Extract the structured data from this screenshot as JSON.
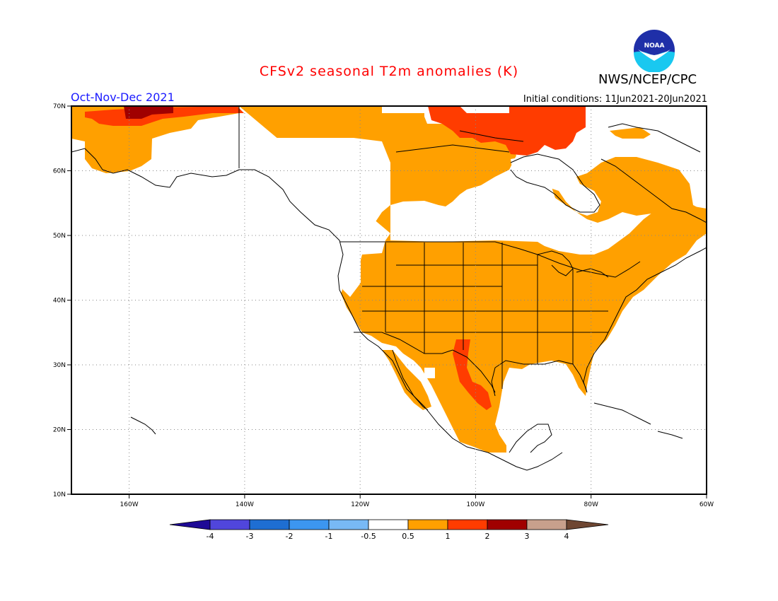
{
  "title": "CFSv2 seasonal T2m anomalies (K)",
  "agency": "NWS/NCEP/CPC",
  "logo_text": "NOAA",
  "period": "Oct-Nov-Dec 2021",
  "initial_conditions": "Initial conditions: 11Jun2021-20Jun2021",
  "map": {
    "lon_range": [
      -170,
      -60
    ],
    "lat_range": [
      10,
      70
    ],
    "y_ticks": [
      "70N",
      "60N",
      "50N",
      "40N",
      "30N",
      "20N",
      "10N"
    ],
    "x_ticks": [
      "160W",
      "140W",
      "120W",
      "100W",
      "80W",
      "60W"
    ],
    "gridlines": "dotted"
  },
  "colorbar": {
    "levels": [
      "-4",
      "-3",
      "-2",
      "-1",
      "-0.5",
      "0.5",
      "1",
      "2",
      "3",
      "4"
    ],
    "colors": [
      "#1e0a96",
      "#5046dc",
      "#1e6ed2",
      "#3c96f0",
      "#78b9f5",
      "#ffffff",
      "#ffa000",
      "#ff3c00",
      "#a00000",
      "#c8a08c",
      "#6e4632"
    ]
  },
  "colors": {
    "anomaly_0_5_to_1": "#ffa000",
    "anomaly_1_to_2": "#ff3c00",
    "anomaly_2_to_3": "#a00000",
    "title": "#ff0000",
    "period": "#1a1aff"
  }
}
